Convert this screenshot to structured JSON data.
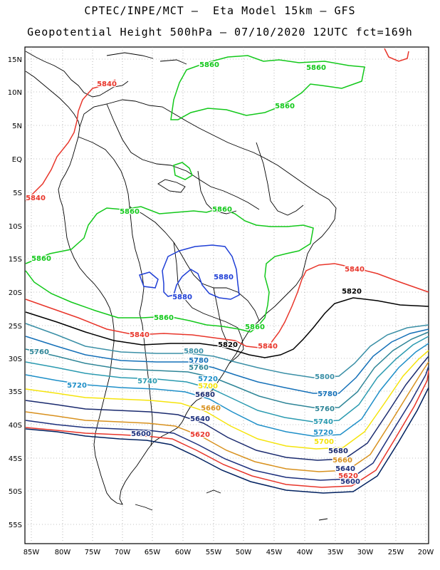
{
  "header": {
    "line1": "CPTEC/INPE/MCT –  Eta Model 15km – GFS",
    "line2": "Geopotential Height 500hPa – 07/10/2020 12UTC fct=169h"
  },
  "axes": {
    "lat_labels": [
      "15N",
      "10N",
      "5N",
      "EQ",
      "5S",
      "10S",
      "15S",
      "20S",
      "25S",
      "30S",
      "35S",
      "40S",
      "45S",
      "50S",
      "55S"
    ],
    "lon_labels": [
      "85W",
      "80W",
      "75W",
      "70W",
      "65W",
      "60W",
      "55W",
      "50W",
      "45W",
      "40W",
      "35W",
      "30W",
      "25W",
      "20W"
    ]
  },
  "colors": {
    "5580": "#00205f",
    "5600": "#1c2f7c",
    "5620": "#e8352a",
    "5640": "#1c2f7c",
    "5660": "#d8911e",
    "5680": "#1a2a6e",
    "5700": "#f5e40c",
    "5720": "#1e8fc8",
    "5740": "#2a9ab0",
    "5760": "#2e8597",
    "5780": "#1470b8",
    "5800": "#3a8fa6",
    "5820": "#000000",
    "5840": "#e8352a",
    "5860": "#12c81a",
    "5880": "#1f3fd6"
  },
  "contour_labels": [
    {
      "text": "5860",
      "color": "5860"
    },
    {
      "text": "5860",
      "color": "5860"
    },
    {
      "text": "5860",
      "color": "5860"
    },
    {
      "text": "5840",
      "color": "5840"
    },
    {
      "text": "5840",
      "color": "5840"
    },
    {
      "text": "5860",
      "color": "5860"
    },
    {
      "text": "5860",
      "color": "5860"
    },
    {
      "text": "5860",
      "color": "5860"
    },
    {
      "text": "5880",
      "color": "5880"
    },
    {
      "text": "5880",
      "color": "5880"
    },
    {
      "text": "5840",
      "color": "5840"
    },
    {
      "text": "5820",
      "color": "5820"
    },
    {
      "text": "5860",
      "color": "5860"
    },
    {
      "text": "5860",
      "color": "5860"
    },
    {
      "text": "5840",
      "color": "5840"
    },
    {
      "text": "5820",
      "color": "5820"
    },
    {
      "text": "5840",
      "color": "5840"
    },
    {
      "text": "5760",
      "color": "5760"
    },
    {
      "text": "5800",
      "color": "5800"
    },
    {
      "text": "5780",
      "color": "5780"
    },
    {
      "text": "5760",
      "color": "5760"
    },
    {
      "text": "5720",
      "color": "5720"
    },
    {
      "text": "5740",
      "color": "5740"
    },
    {
      "text": "5720",
      "color": "5720"
    },
    {
      "text": "5700",
      "color": "5700"
    },
    {
      "text": "5680",
      "color": "5680"
    },
    {
      "text": "5660",
      "color": "5660"
    },
    {
      "text": "5640",
      "color": "5640"
    },
    {
      "text": "5620",
      "color": "5620"
    },
    {
      "text": "5600",
      "color": "5600"
    },
    {
      "text": "5800",
      "color": "5800"
    },
    {
      "text": "5780",
      "color": "5780"
    },
    {
      "text": "5760",
      "color": "5760"
    },
    {
      "text": "5740",
      "color": "5740"
    },
    {
      "text": "5720",
      "color": "5720"
    },
    {
      "text": "5700",
      "color": "5700"
    },
    {
      "text": "5680",
      "color": "5680"
    },
    {
      "text": "5660",
      "color": "5660"
    },
    {
      "text": "5640",
      "color": "5640"
    },
    {
      "text": "5620",
      "color": "5620"
    },
    {
      "text": "5600",
      "color": "5600"
    }
  ]
}
